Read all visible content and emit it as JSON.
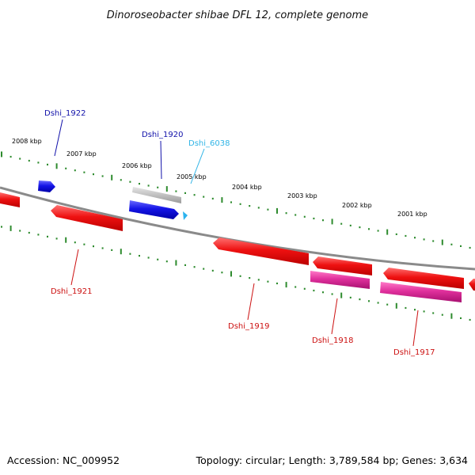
{
  "title": "Dinoroseobacter shibae DFL 12, complete genome",
  "footer": {
    "accession": "Accession: NC_009952",
    "summary": "Topology: circular; Length: 3,789,584 bp; Genes: 3,634"
  },
  "colors": {
    "backbone": "#8a8a8a",
    "tick": "#2e8b2e",
    "forward_gene": "#1414e6",
    "reverse_gene": "#ee1111",
    "pseudo_gene": "#c4c4c4",
    "rna_gene": "#dd2f9b",
    "small_gene": "#2bb3ee"
  },
  "scale_labels": [
    "2008 kbp",
    "2007 kbp",
    "2006 kbp",
    "2005 kbp",
    "2004 kbp",
    "2003 kbp",
    "2002 kbp",
    "2001 kbp"
  ],
  "genes": [
    {
      "id": "Dshi_1922",
      "color": "#1212aa"
    },
    {
      "id": "Dshi_1920",
      "color": "#1212aa"
    },
    {
      "id": "Dshi_6038",
      "color": "#30b4e6"
    },
    {
      "id": "Dshi_1921",
      "color": "#cc1111"
    },
    {
      "id": "Dshi_1919",
      "color": "#cc1111"
    },
    {
      "id": "Dshi_1918",
      "color": "#cc1111"
    },
    {
      "id": "Dshi_1917",
      "color": "#cc1111"
    }
  ]
}
